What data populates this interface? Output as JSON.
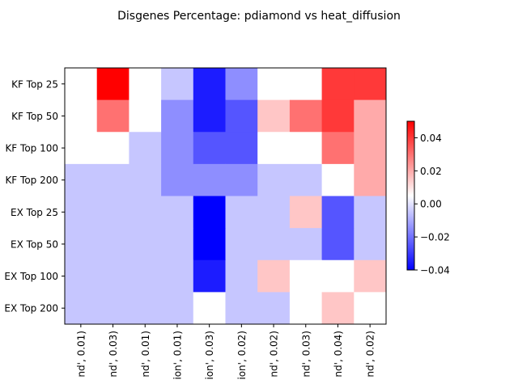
{
  "chart_data": {
    "type": "heatmap",
    "title": "Disgenes Percentage: pdiamond vs heat_diffusion",
    "rows": [
      "KF Top 25",
      "KF Top 50",
      "KF Top 100",
      "KF Top 200",
      "EX Top 25",
      "EX Top 50",
      "EX Top 100",
      "EX Top 200"
    ],
    "columns": [
      "nd', 0.01)",
      "nd', 0.03)",
      "nd', 0.01)",
      "ion', 0.01)",
      "ion', 0.03)",
      "ion', 0.02)",
      "nd', 0.02)",
      "nd', 0.03)",
      "nd', 0.04)",
      "nd', 0.02)"
    ],
    "values": [
      [
        0.005,
        0.05,
        0.005,
        -0.005,
        -0.035,
        -0.015,
        0.005,
        0.005,
        0.04,
        0.04
      ],
      [
        0.005,
        0.03,
        0.005,
        -0.015,
        -0.035,
        -0.025,
        0.015,
        0.03,
        0.04,
        0.02
      ],
      [
        0.005,
        0.005,
        -0.005,
        -0.015,
        -0.025,
        -0.025,
        0.005,
        0.005,
        0.03,
        0.02
      ],
      [
        -0.005,
        -0.005,
        -0.005,
        -0.015,
        -0.015,
        -0.015,
        -0.005,
        -0.005,
        0.005,
        0.02
      ],
      [
        -0.005,
        -0.005,
        -0.005,
        -0.005,
        -0.045,
        -0.005,
        -0.005,
        0.015,
        -0.025,
        -0.005
      ],
      [
        -0.005,
        -0.005,
        -0.005,
        -0.005,
        -0.045,
        -0.005,
        -0.005,
        -0.005,
        -0.025,
        -0.005
      ],
      [
        -0.005,
        -0.005,
        -0.005,
        -0.005,
        -0.035,
        -0.005,
        0.015,
        0.005,
        0.005,
        0.015
      ],
      [
        -0.005,
        -0.005,
        -0.005,
        -0.005,
        0.005,
        -0.005,
        -0.005,
        0.005,
        0.015,
        0.005
      ]
    ],
    "colormap": "bwr",
    "vmin": -0.04,
    "vmax": 0.05,
    "colorbar": {
      "ticks": [
        0.04,
        0.02,
        0.0,
        -0.02,
        -0.04
      ],
      "tick_labels": [
        "0.04",
        "0.02",
        "0.00",
        "−0.02",
        "−0.04"
      ]
    }
  }
}
